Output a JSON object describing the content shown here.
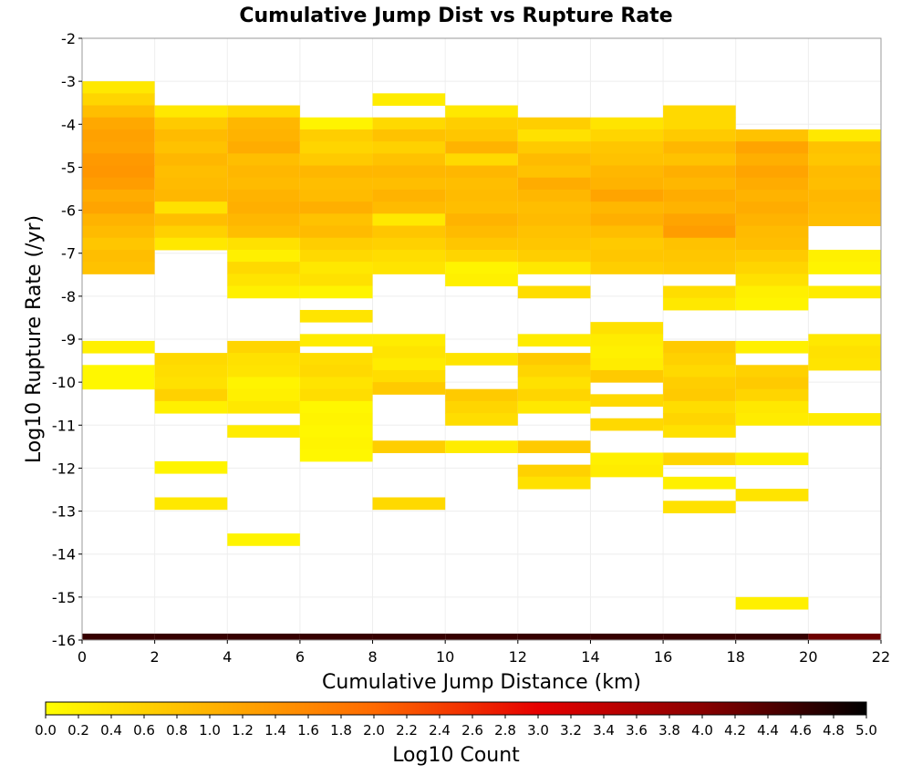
{
  "chart_data": {
    "type": "heatmap",
    "title": "Cumulative Jump Dist vs Rupture Rate",
    "xlabel": "Cumulative Jump Distance (km)",
    "ylabel": "Log10 Rupture Rate (/yr)",
    "xlim": [
      0,
      22
    ],
    "ylim": [
      -16,
      -2
    ],
    "x_ticks": [
      0,
      2,
      4,
      6,
      8,
      10,
      12,
      14,
      16,
      18,
      20,
      22
    ],
    "y_ticks": [
      -2,
      -3,
      -4,
      -5,
      -6,
      -7,
      -8,
      -9,
      -10,
      -11,
      -12,
      -13,
      -14,
      -15,
      -16
    ],
    "grid": true,
    "x_bin_width": 2,
    "y_bin_height": 0.28,
    "colorbar": {
      "label": "Log10 Count",
      "range": [
        0.0,
        5.0
      ],
      "ticks": [
        "0.0",
        "0.2",
        "0.4",
        "0.6",
        "0.8",
        "1.0",
        "1.2",
        "1.4",
        "1.6",
        "1.8",
        "2.0",
        "2.2",
        "2.4",
        "2.6",
        "2.8",
        "3.0",
        "3.2",
        "3.4",
        "3.6",
        "3.8",
        "4.0",
        "4.2",
        "4.4",
        "4.6",
        "4.8",
        "5.0"
      ],
      "colors": [
        "#ffff00",
        "#ffb300",
        "#ff6a00",
        "#e60000",
        "#8a0000",
        "#000000"
      ],
      "placement": "bottom"
    },
    "columns": [
      {
        "x0": 0,
        "cells": [
          [
            -3.0,
            0.3
          ],
          [
            -3.28,
            0.55
          ],
          [
            -3.56,
            0.85
          ],
          [
            -3.84,
            1.15
          ],
          [
            -4.12,
            1.25
          ],
          [
            -4.4,
            1.2
          ],
          [
            -4.68,
            1.35
          ],
          [
            -4.96,
            1.4
          ],
          [
            -5.24,
            1.3
          ],
          [
            -5.52,
            1.1
          ],
          [
            -5.8,
            1.2
          ],
          [
            -6.08,
            1.0
          ],
          [
            -6.36,
            0.9
          ],
          [
            -6.64,
            0.75
          ],
          [
            -6.92,
            0.85
          ],
          [
            -7.2,
            0.8
          ],
          [
            -9.04,
            0.2
          ],
          [
            -9.6,
            0.1
          ],
          [
            -9.88,
            0.1
          ]
        ]
      },
      {
        "x0": 2,
        "cells": [
          [
            -3.56,
            0.3
          ],
          [
            -3.84,
            0.7
          ],
          [
            -4.12,
            0.9
          ],
          [
            -4.4,
            0.8
          ],
          [
            -4.68,
            0.95
          ],
          [
            -4.96,
            0.85
          ],
          [
            -5.24,
            0.9
          ],
          [
            -5.52,
            0.95
          ],
          [
            -5.8,
            0.4
          ],
          [
            -6.08,
            0.85
          ],
          [
            -6.36,
            0.6
          ],
          [
            -6.64,
            0.3
          ],
          [
            -9.32,
            0.5
          ],
          [
            -9.6,
            0.45
          ],
          [
            -9.88,
            0.4
          ],
          [
            -10.16,
            0.6
          ],
          [
            -10.44,
            0.2
          ],
          [
            -11.84,
            0.15
          ],
          [
            -12.68,
            0.3
          ]
        ]
      },
      {
        "x0": 4,
        "cells": [
          [
            -3.56,
            0.5
          ],
          [
            -3.84,
            0.95
          ],
          [
            -4.12,
            1.0
          ],
          [
            -4.4,
            1.1
          ],
          [
            -4.68,
            0.85
          ],
          [
            -4.96,
            0.95
          ],
          [
            -5.24,
            0.9
          ],
          [
            -5.52,
            1.0
          ],
          [
            -5.8,
            1.05
          ],
          [
            -6.08,
            0.95
          ],
          [
            -6.36,
            0.85
          ],
          [
            -6.64,
            0.4
          ],
          [
            -6.92,
            0.2
          ],
          [
            -7.2,
            0.5
          ],
          [
            -7.48,
            0.35
          ],
          [
            -7.76,
            0.2
          ],
          [
            -9.04,
            0.55
          ],
          [
            -9.32,
            0.4
          ],
          [
            -9.6,
            0.35
          ],
          [
            -9.88,
            0.15
          ],
          [
            -10.16,
            0.2
          ],
          [
            -10.44,
            0.3
          ],
          [
            -11.0,
            0.25
          ],
          [
            -13.52,
            0.15
          ]
        ]
      },
      {
        "x0": 6,
        "cells": [
          [
            -3.84,
            0.15
          ],
          [
            -4.12,
            0.65
          ],
          [
            -4.4,
            0.55
          ],
          [
            -4.68,
            0.7
          ],
          [
            -4.96,
            0.95
          ],
          [
            -5.24,
            0.85
          ],
          [
            -5.52,
            0.9
          ],
          [
            -5.8,
            1.05
          ],
          [
            -6.08,
            0.8
          ],
          [
            -6.36,
            0.9
          ],
          [
            -6.64,
            0.65
          ],
          [
            -6.92,
            0.5
          ],
          [
            -7.2,
            0.3
          ],
          [
            -7.48,
            0.4
          ],
          [
            -7.76,
            0.15
          ],
          [
            -8.32,
            0.35
          ],
          [
            -8.88,
            0.25
          ],
          [
            -9.32,
            0.45
          ],
          [
            -9.6,
            0.5
          ],
          [
            -9.88,
            0.35
          ],
          [
            -10.16,
            0.45
          ],
          [
            -10.44,
            0.1
          ],
          [
            -10.72,
            0.15
          ],
          [
            -11.0,
            0.1
          ],
          [
            -11.28,
            0.15
          ],
          [
            -11.56,
            0.1
          ]
        ]
      },
      {
        "x0": 8,
        "cells": [
          [
            -3.28,
            0.25
          ],
          [
            -3.84,
            0.5
          ],
          [
            -4.12,
            0.8
          ],
          [
            -4.4,
            0.6
          ],
          [
            -4.68,
            0.8
          ],
          [
            -4.96,
            0.95
          ],
          [
            -5.24,
            0.85
          ],
          [
            -5.52,
            1.0
          ],
          [
            -5.8,
            0.9
          ],
          [
            -6.08,
            0.3
          ],
          [
            -6.36,
            0.75
          ],
          [
            -6.64,
            0.6
          ],
          [
            -6.92,
            0.45
          ],
          [
            -7.2,
            0.35
          ],
          [
            -8.88,
            0.25
          ],
          [
            -9.16,
            0.35
          ],
          [
            -9.44,
            0.25
          ],
          [
            -9.72,
            0.45
          ],
          [
            -10.0,
            0.7
          ],
          [
            -11.36,
            0.65
          ],
          [
            -12.68,
            0.5
          ]
        ]
      },
      {
        "x0": 10,
        "cells": [
          [
            -3.56,
            0.3
          ],
          [
            -3.84,
            0.65
          ],
          [
            -4.12,
            0.75
          ],
          [
            -4.4,
            1.0
          ],
          [
            -4.68,
            0.5
          ],
          [
            -4.96,
            0.95
          ],
          [
            -5.24,
            0.85
          ],
          [
            -5.52,
            0.9
          ],
          [
            -5.8,
            0.85
          ],
          [
            -6.08,
            1.0
          ],
          [
            -6.36,
            0.9
          ],
          [
            -6.64,
            0.75
          ],
          [
            -6.92,
            0.55
          ],
          [
            -7.2,
            0.15
          ],
          [
            -7.48,
            0.2
          ],
          [
            -9.32,
            0.35
          ],
          [
            -10.16,
            0.7
          ],
          [
            -10.44,
            0.55
          ],
          [
            -10.72,
            0.45
          ],
          [
            -11.36,
            0.25
          ]
        ]
      },
      {
        "x0": 12,
        "cells": [
          [
            -3.84,
            0.65
          ],
          [
            -4.12,
            0.4
          ],
          [
            -4.4,
            0.7
          ],
          [
            -4.68,
            0.9
          ],
          [
            -4.96,
            0.8
          ],
          [
            -5.24,
            1.1
          ],
          [
            -5.52,
            0.95
          ],
          [
            -5.8,
            0.85
          ],
          [
            -6.08,
            0.9
          ],
          [
            -6.36,
            0.8
          ],
          [
            -6.64,
            0.75
          ],
          [
            -6.92,
            0.65
          ],
          [
            -7.2,
            0.3
          ],
          [
            -7.76,
            0.45
          ],
          [
            -8.88,
            0.25
          ],
          [
            -9.32,
            0.7
          ],
          [
            -9.6,
            0.55
          ],
          [
            -9.88,
            0.4
          ],
          [
            -10.16,
            0.55
          ],
          [
            -10.44,
            0.3
          ],
          [
            -11.36,
            0.7
          ],
          [
            -11.92,
            0.6
          ],
          [
            -12.2,
            0.4
          ]
        ]
      },
      {
        "x0": 14,
        "cells": [
          [
            -3.84,
            0.35
          ],
          [
            -4.12,
            0.55
          ],
          [
            -4.4,
            0.75
          ],
          [
            -4.68,
            0.8
          ],
          [
            -4.96,
            0.95
          ],
          [
            -5.24,
            1.0
          ],
          [
            -5.52,
            1.2
          ],
          [
            -5.8,
            0.95
          ],
          [
            -6.08,
            1.05
          ],
          [
            -6.36,
            0.85
          ],
          [
            -6.64,
            0.7
          ],
          [
            -6.92,
            0.75
          ],
          [
            -7.2,
            0.65
          ],
          [
            -8.6,
            0.4
          ],
          [
            -8.88,
            0.25
          ],
          [
            -9.16,
            0.2
          ],
          [
            -9.44,
            0.25
          ],
          [
            -9.72,
            0.7
          ],
          [
            -10.28,
            0.5
          ],
          [
            -10.84,
            0.5
          ],
          [
            -11.64,
            0.2
          ],
          [
            -11.92,
            0.25
          ]
        ]
      },
      {
        "x0": 16,
        "cells": [
          [
            -3.56,
            0.5
          ],
          [
            -3.84,
            0.5
          ],
          [
            -4.12,
            0.7
          ],
          [
            -4.4,
            0.95
          ],
          [
            -4.68,
            0.8
          ],
          [
            -4.96,
            1.05
          ],
          [
            -5.24,
            0.95
          ],
          [
            -5.52,
            1.1
          ],
          [
            -5.8,
            1.0
          ],
          [
            -6.08,
            1.2
          ],
          [
            -6.36,
            1.3
          ],
          [
            -6.64,
            0.8
          ],
          [
            -6.92,
            0.75
          ],
          [
            -7.2,
            0.7
          ],
          [
            -7.76,
            0.45
          ],
          [
            -8.04,
            0.3
          ],
          [
            -9.04,
            0.7
          ],
          [
            -9.32,
            0.6
          ],
          [
            -9.6,
            0.5
          ],
          [
            -9.88,
            0.65
          ],
          [
            -10.16,
            0.7
          ],
          [
            -10.44,
            0.45
          ],
          [
            -10.72,
            0.55
          ],
          [
            -11.0,
            0.4
          ],
          [
            -11.64,
            0.55
          ],
          [
            -12.2,
            0.2
          ],
          [
            -12.76,
            0.4
          ]
        ]
      },
      {
        "x0": 18,
        "cells": [
          [
            -4.12,
            0.8
          ],
          [
            -4.4,
            1.2
          ],
          [
            -4.68,
            1.05
          ],
          [
            -4.96,
            1.2
          ],
          [
            -5.24,
            1.1
          ],
          [
            -5.52,
            1.0
          ],
          [
            -5.8,
            1.1
          ],
          [
            -6.08,
            1.0
          ],
          [
            -6.36,
            0.9
          ],
          [
            -6.64,
            0.85
          ],
          [
            -6.92,
            0.7
          ],
          [
            -7.2,
            0.55
          ],
          [
            -7.48,
            0.4
          ],
          [
            -7.76,
            0.2
          ],
          [
            -8.04,
            0.15
          ],
          [
            -9.04,
            0.2
          ],
          [
            -9.6,
            0.6
          ],
          [
            -9.88,
            0.7
          ],
          [
            -10.16,
            0.55
          ],
          [
            -10.44,
            0.3
          ],
          [
            -10.72,
            0.25
          ],
          [
            -11.64,
            0.2
          ],
          [
            -12.48,
            0.35
          ],
          [
            -15.0,
            0.2
          ]
        ]
      },
      {
        "x0": 20,
        "cells": [
          [
            -4.12,
            0.3
          ],
          [
            -4.4,
            0.8
          ],
          [
            -4.68,
            0.75
          ],
          [
            -4.96,
            0.9
          ],
          [
            -5.24,
            0.85
          ],
          [
            -5.52,
            0.95
          ],
          [
            -5.8,
            0.9
          ],
          [
            -6.08,
            0.85
          ],
          [
            -6.92,
            0.2
          ],
          [
            -7.2,
            0.15
          ],
          [
            -7.76,
            0.25
          ],
          [
            -8.88,
            0.3
          ],
          [
            -9.16,
            0.4
          ],
          [
            -9.44,
            0.35
          ],
          [
            -10.72,
            0.25
          ]
        ]
      }
    ],
    "bottom_band": {
      "y0": -16.0,
      "y1": -15.85,
      "values": [
        4.6,
        4.6,
        4.6,
        4.6,
        4.6,
        4.6,
        4.6,
        4.6,
        4.6,
        4.6,
        4.2
      ]
    }
  }
}
